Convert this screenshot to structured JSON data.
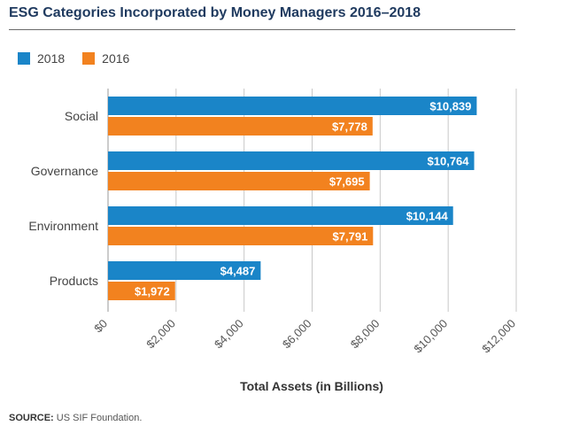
{
  "chart_data": {
    "type": "bar",
    "orientation": "horizontal",
    "title": "ESG Categories Incorporated by Money Managers 2016–2018",
    "xlabel": "Total Assets (in Billions)",
    "ylabel": "",
    "categories": [
      "Social",
      "Governance",
      "Environment",
      "Products"
    ],
    "series": [
      {
        "name": "2018",
        "color": "#1a85c8",
        "values": [
          10839,
          10764,
          10144,
          4487
        ],
        "labels": [
          "$10,839",
          "$10,764",
          "$10,144",
          "$4,487"
        ]
      },
      {
        "name": "2016",
        "color": "#f2821f",
        "values": [
          7778,
          7695,
          7791,
          1972
        ],
        "labels": [
          "$7,778",
          "$7,695",
          "$7,791",
          "$1,972"
        ]
      }
    ],
    "xlim": [
      0,
      12000
    ],
    "ticks": [
      0,
      2000,
      4000,
      6000,
      8000,
      10000,
      12000
    ],
    "tick_labels": [
      "$0",
      "$2,000",
      "$4,000",
      "$6,000",
      "$8,000",
      "$10,000",
      "$12,000"
    ],
    "grid": true,
    "legend": "top-left"
  },
  "source": {
    "label": "SOURCE:",
    "text": "US SIF Foundation."
  }
}
